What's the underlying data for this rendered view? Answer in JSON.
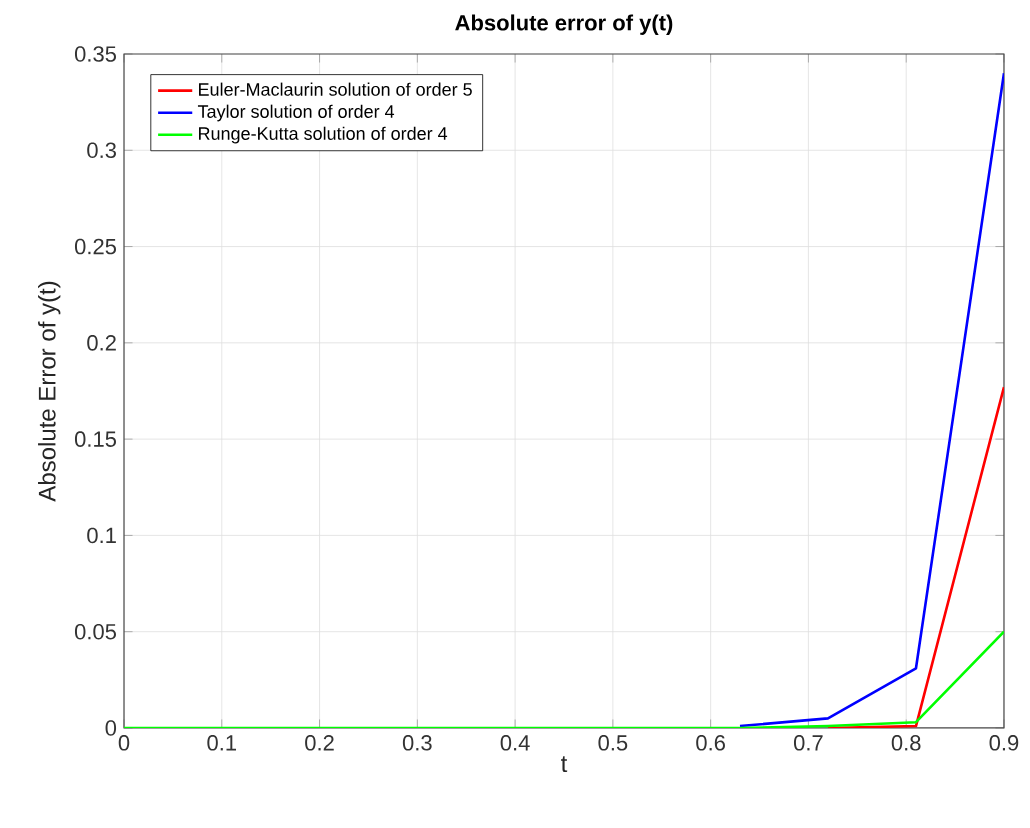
{
  "chart_data": {
    "type": "line",
    "title": "Absolute error of y(t)",
    "xlabel": "t",
    "ylabel": "Absolute Error of y(t)",
    "x": [
      0,
      0.09,
      0.18,
      0.27,
      0.36,
      0.45,
      0.54,
      0.63,
      0.72,
      0.81,
      0.9
    ],
    "series": [
      {
        "name": "Euler-Maclaurin solution of order 5",
        "color": "#ff0000",
        "values": [
          null,
          null,
          null,
          null,
          null,
          null,
          null,
          null,
          0,
          0.001,
          0.177
        ]
      },
      {
        "name": "Taylor solution of order 4",
        "color": "#0000ff",
        "values": [
          null,
          null,
          null,
          null,
          null,
          null,
          null,
          0.001,
          0.005,
          0.031,
          0.34
        ]
      },
      {
        "name": "Runge-Kutta solution of order 4",
        "color": "#00ff00",
        "values": [
          0,
          0,
          0,
          0,
          0,
          0,
          0,
          0,
          0.001,
          0.003,
          0.05
        ]
      }
    ],
    "xlim": [
      0,
      0.9
    ],
    "ylim": [
      0,
      0.35
    ],
    "xticks": [
      0,
      0.1,
      0.2,
      0.3,
      0.4,
      0.5,
      0.6,
      0.7,
      0.8,
      0.9
    ],
    "yticks": [
      0,
      0.05,
      0.1,
      0.15,
      0.2,
      0.25,
      0.3,
      0.35
    ],
    "grid": true,
    "legend": "top left",
    "marker": "none",
    "line_style": "solid"
  }
}
